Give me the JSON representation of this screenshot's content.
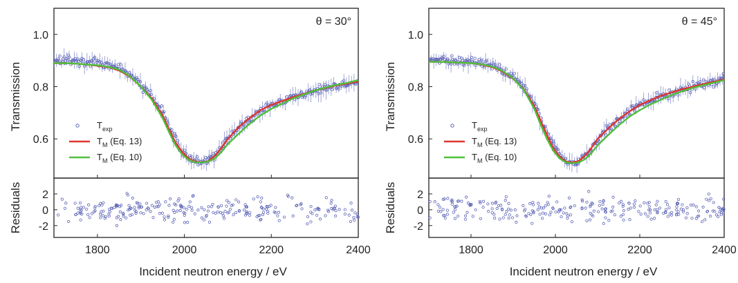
{
  "chart_data": [
    {
      "type": "scatter",
      "angle_label": "θ = 30°",
      "xlabel": "Incident neutron energy / eV",
      "ylabel_top": "Transmission",
      "ylabel_bottom": "Residuals",
      "xlim": [
        1700,
        2400
      ],
      "xticks": [
        1800,
        2000,
        2200,
        2400
      ],
      "ylim_top": [
        0.45,
        1.1
      ],
      "yticks_top": [
        0.6,
        0.8,
        1.0
      ],
      "ylim_bottom": [
        -3.5,
        4
      ],
      "yticks_bottom": [
        -2,
        0,
        2
      ],
      "legend_position": "bottom-left",
      "legend": [
        {
          "label": "T",
          "sub": "exp"
        },
        {
          "label": "T",
          "sub": "M",
          "rest": " (Eq. 13)"
        },
        {
          "label": "T",
          "sub": "M",
          "rest": " (Eq. 10)"
        }
      ],
      "series": [
        {
          "style": "points",
          "color": "#5b63b6",
          "x": [
            1700,
            1725,
            1750,
            1775,
            1800,
            1825,
            1850,
            1875,
            1900,
            1925,
            1950,
            1965,
            1980,
            1995,
            2010,
            2025,
            2040,
            2055,
            2070,
            2085,
            2100,
            2125,
            2150,
            2175,
            2200,
            2225,
            2250,
            2275,
            2300,
            2325,
            2350,
            2375,
            2400
          ],
          "y": [
            0.905,
            0.905,
            0.9,
            0.895,
            0.89,
            0.88,
            0.87,
            0.845,
            0.81,
            0.765,
            0.7,
            0.645,
            0.595,
            0.555,
            0.53,
            0.515,
            0.513,
            0.52,
            0.54,
            0.57,
            0.6,
            0.64,
            0.675,
            0.705,
            0.73,
            0.745,
            0.76,
            0.77,
            0.785,
            0.795,
            0.805,
            0.81,
            0.82
          ]
        },
        {
          "style": "line",
          "color": "#e03530",
          "x": [
            1700,
            1725,
            1750,
            1775,
            1800,
            1825,
            1850,
            1875,
            1900,
            1925,
            1950,
            1965,
            1980,
            1995,
            2010,
            2025,
            2040,
            2055,
            2070,
            2085,
            2100,
            2125,
            2150,
            2175,
            2200,
            2225,
            2250,
            2275,
            2300,
            2325,
            2350,
            2375,
            2400
          ],
          "y": [
            0.89,
            0.89,
            0.888,
            0.885,
            0.88,
            0.875,
            0.862,
            0.838,
            0.8,
            0.755,
            0.69,
            0.635,
            0.585,
            0.55,
            0.525,
            0.513,
            0.51,
            0.515,
            0.535,
            0.565,
            0.6,
            0.645,
            0.68,
            0.71,
            0.73,
            0.745,
            0.76,
            0.772,
            0.785,
            0.795,
            0.805,
            0.812,
            0.82
          ]
        },
        {
          "style": "line",
          "color": "#4fbf3a",
          "x": [
            1700,
            1725,
            1750,
            1775,
            1800,
            1825,
            1850,
            1875,
            1900,
            1925,
            1950,
            1965,
            1980,
            1995,
            2010,
            2025,
            2040,
            2055,
            2070,
            2085,
            2100,
            2125,
            2150,
            2175,
            2200,
            2225,
            2250,
            2275,
            2300,
            2325,
            2350,
            2375,
            2400
          ],
          "y": [
            0.89,
            0.89,
            0.888,
            0.885,
            0.882,
            0.876,
            0.865,
            0.84,
            0.8,
            0.75,
            0.68,
            0.625,
            0.575,
            0.54,
            0.52,
            0.51,
            0.51,
            0.513,
            0.525,
            0.55,
            0.58,
            0.62,
            0.658,
            0.69,
            0.715,
            0.735,
            0.755,
            0.77,
            0.785,
            0.797,
            0.807,
            0.815,
            0.825
          ]
        }
      ],
      "residuals": {
        "x_range": [
          1700,
          2400
        ],
        "amplitude": 1.6,
        "count": 260,
        "color": "#5b63b6"
      }
    },
    {
      "type": "scatter",
      "angle_label": "θ = 45°",
      "xlabel": "Incident neutron energy / eV",
      "ylabel_top": "Transmission",
      "ylabel_bottom": "Residuals",
      "xlim": [
        1700,
        2400
      ],
      "xticks": [
        1800,
        2000,
        2200,
        2400
      ],
      "ylim_top": [
        0.45,
        1.1
      ],
      "yticks_top": [
        0.6,
        0.8,
        1.0
      ],
      "ylim_bottom": [
        -3.5,
        4
      ],
      "yticks_bottom": [
        -2,
        0,
        2
      ],
      "legend_position": "bottom-left",
      "legend": [
        {
          "label": "T",
          "sub": "exp"
        },
        {
          "label": "T",
          "sub": "M",
          "rest": " (Eq. 13)"
        },
        {
          "label": "T",
          "sub": "M",
          "rest": " (Eq. 10)"
        }
      ],
      "series": [
        {
          "style": "points",
          "color": "#5b63b6",
          "x": [
            1700,
            1725,
            1750,
            1775,
            1800,
            1825,
            1850,
            1875,
            1900,
            1925,
            1950,
            1965,
            1980,
            1995,
            2010,
            2025,
            2040,
            2055,
            2070,
            2085,
            2100,
            2125,
            2150,
            2175,
            2200,
            2225,
            2250,
            2275,
            2300,
            2325,
            2350,
            2375,
            2400
          ],
          "y": [
            0.9,
            0.9,
            0.9,
            0.898,
            0.895,
            0.89,
            0.88,
            0.865,
            0.84,
            0.8,
            0.735,
            0.68,
            0.625,
            0.575,
            0.54,
            0.515,
            0.51,
            0.515,
            0.535,
            0.565,
            0.6,
            0.64,
            0.675,
            0.705,
            0.73,
            0.745,
            0.765,
            0.775,
            0.79,
            0.8,
            0.81,
            0.815,
            0.83
          ]
        },
        {
          "style": "line",
          "color": "#e03530",
          "x": [
            1700,
            1725,
            1750,
            1775,
            1800,
            1825,
            1850,
            1875,
            1900,
            1925,
            1950,
            1965,
            1980,
            1995,
            2010,
            2025,
            2040,
            2055,
            2070,
            2085,
            2100,
            2125,
            2150,
            2175,
            2200,
            2225,
            2250,
            2275,
            2300,
            2325,
            2350,
            2375,
            2400
          ],
          "y": [
            0.895,
            0.895,
            0.894,
            0.892,
            0.89,
            0.885,
            0.875,
            0.858,
            0.83,
            0.79,
            0.725,
            0.67,
            0.615,
            0.565,
            0.532,
            0.513,
            0.51,
            0.515,
            0.535,
            0.565,
            0.6,
            0.64,
            0.675,
            0.705,
            0.73,
            0.748,
            0.765,
            0.778,
            0.79,
            0.8,
            0.81,
            0.818,
            0.828
          ]
        },
        {
          "style": "line",
          "color": "#4fbf3a",
          "x": [
            1700,
            1725,
            1750,
            1775,
            1800,
            1825,
            1850,
            1875,
            1900,
            1925,
            1950,
            1965,
            1980,
            1995,
            2010,
            2025,
            2040,
            2055,
            2070,
            2085,
            2100,
            2125,
            2150,
            2175,
            2200,
            2225,
            2250,
            2275,
            2300,
            2325,
            2350,
            2375,
            2400
          ],
          "y": [
            0.895,
            0.895,
            0.894,
            0.892,
            0.89,
            0.886,
            0.877,
            0.86,
            0.832,
            0.788,
            0.715,
            0.655,
            0.6,
            0.555,
            0.525,
            0.51,
            0.507,
            0.51,
            0.522,
            0.545,
            0.575,
            0.615,
            0.652,
            0.685,
            0.71,
            0.732,
            0.75,
            0.768,
            0.782,
            0.795,
            0.805,
            0.815,
            0.825
          ]
        }
      ],
      "residuals": {
        "x_range": [
          1700,
          2400
        ],
        "amplitude": 1.6,
        "count": 260,
        "color": "#5b63b6"
      }
    }
  ]
}
